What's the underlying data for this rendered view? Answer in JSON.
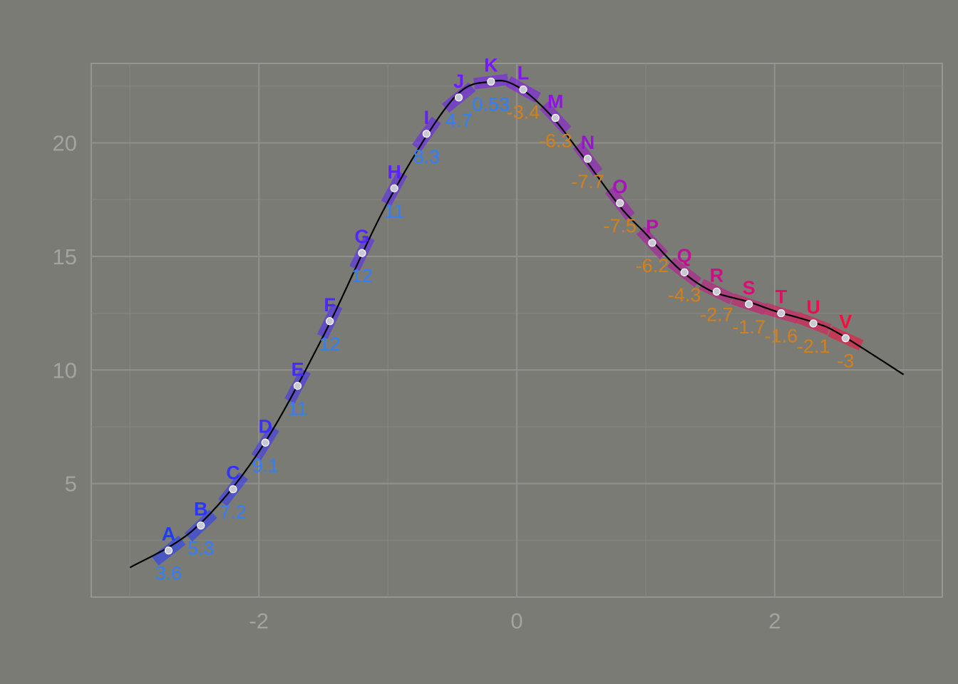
{
  "chart_data": {
    "type": "line",
    "title": "",
    "xlabel": "",
    "ylabel": "",
    "xlim": [
      -3.3,
      3.3
    ],
    "ylim": [
      0,
      23.5
    ],
    "grid": true,
    "legend": "none",
    "x_ticks": [
      {
        "value": -2,
        "label": "-2"
      },
      {
        "value": 0,
        "label": "0"
      },
      {
        "value": 2,
        "label": "2"
      }
    ],
    "y_ticks": [
      {
        "value": 5,
        "label": "5"
      },
      {
        "value": 10,
        "label": "10"
      },
      {
        "value": 15,
        "label": "15"
      },
      {
        "value": 20,
        "label": "20"
      }
    ],
    "curve": {
      "x": [
        -3.0,
        -2.5,
        -2.0,
        -1.5,
        -1.0,
        -0.5,
        -0.2,
        0.0,
        0.25,
        0.5,
        0.8,
        1.0,
        1.25,
        1.5,
        1.8,
        2.0,
        2.3,
        2.5,
        3.0
      ],
      "y": [
        1.3,
        3.0,
        6.4,
        11.5,
        17.4,
        21.9,
        22.7,
        22.5,
        21.3,
        19.5,
        17.2,
        16.0,
        14.5,
        13.5,
        13.0,
        12.6,
        12.1,
        11.6,
        9.8
      ]
    },
    "colors": {
      "curve": "#000000",
      "start": "#1f3bff",
      "middle": "#7d14ff",
      "end": "#ff0a3c",
      "positive_value": "#2f7fff",
      "negative_value": "#d4801a"
    },
    "points": [
      {
        "label": "A",
        "x": -2.7,
        "y": 2.05,
        "value": "3.6"
      },
      {
        "label": "B",
        "x": -2.45,
        "y": 3.15,
        "value": "5.3"
      },
      {
        "label": "C",
        "x": -2.2,
        "y": 4.75,
        "value": "7.2"
      },
      {
        "label": "D",
        "x": -1.95,
        "y": 6.8,
        "value": "9.1"
      },
      {
        "label": "E",
        "x": -1.7,
        "y": 9.3,
        "value": "11"
      },
      {
        "label": "F",
        "x": -1.45,
        "y": 12.15,
        "value": "12"
      },
      {
        "label": "G",
        "x": -1.2,
        "y": 15.15,
        "value": "12"
      },
      {
        "label": "H",
        "x": -0.95,
        "y": 18.0,
        "value": "11"
      },
      {
        "label": "I",
        "x": -0.7,
        "y": 20.4,
        "value": "8.3"
      },
      {
        "label": "J",
        "x": -0.45,
        "y": 22.0,
        "value": "4.7"
      },
      {
        "label": "K",
        "x": -0.2,
        "y": 22.7,
        "value": "0.53"
      },
      {
        "label": "L",
        "x": 0.05,
        "y": 22.35,
        "value": "-3.4"
      },
      {
        "label": "M",
        "x": 0.3,
        "y": 21.1,
        "value": "-6.3"
      },
      {
        "label": "N",
        "x": 0.55,
        "y": 19.3,
        "value": "-7.7"
      },
      {
        "label": "O",
        "x": 0.8,
        "y": 17.35,
        "value": "-7.5"
      },
      {
        "label": "P",
        "x": 1.05,
        "y": 15.6,
        "value": "-6.2"
      },
      {
        "label": "Q",
        "x": 1.3,
        "y": 14.3,
        "value": "-4.3"
      },
      {
        "label": "R",
        "x": 1.55,
        "y": 13.45,
        "value": "-2.7"
      },
      {
        "label": "S",
        "x": 1.8,
        "y": 12.9,
        "value": "-1.7"
      },
      {
        "label": "T",
        "x": 2.05,
        "y": 12.5,
        "value": "-1.6"
      },
      {
        "label": "U",
        "x": 2.3,
        "y": 12.05,
        "value": "-2.1"
      },
      {
        "label": "V",
        "x": 2.55,
        "y": 11.4,
        "value": "-3"
      }
    ]
  }
}
